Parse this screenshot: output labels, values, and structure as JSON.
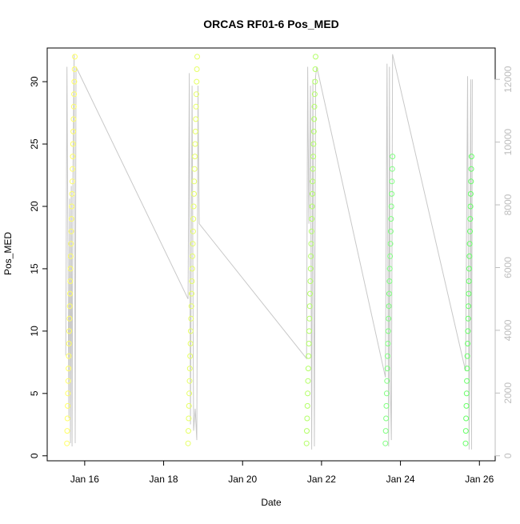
{
  "chart_data": {
    "type": "scatter",
    "title": "ORCAS RF01-6 Pos_MED",
    "xlabel": "Date",
    "ylabel": "Pos_MED",
    "x_ticks": [
      {
        "label": "Jan 16",
        "value": 16
      },
      {
        "label": "Jan 18",
        "value": 18
      },
      {
        "label": "Jan 20",
        "value": 20
      },
      {
        "label": "Jan 22",
        "value": 22
      },
      {
        "label": "Jan 24",
        "value": 24
      },
      {
        "label": "Jan 26",
        "value": 26
      }
    ],
    "xlim": [
      15.05,
      26.4
    ],
    "ylim": [
      -0.4,
      32.7
    ],
    "y_ticks": [
      0,
      5,
      10,
      15,
      20,
      25,
      30
    ],
    "y2lim": [
      -160,
      13000
    ],
    "y2_ticks": [
      0,
      2000,
      4000,
      6000,
      8000,
      10000,
      12000
    ],
    "grid": false,
    "colors": {
      "background": "#ffffff",
      "axis": "#000000",
      "secondary_axis": "#bdbdbd",
      "altitude_line": "#c8c8c8",
      "flight_colors": [
        "#ffff66",
        "#e6ff66",
        "#b3ff66",
        "#99ff66",
        "#80ff80",
        "#66ff66"
      ]
    },
    "series": [
      {
        "time_start": 15.55,
        "time_end": 15.75,
        "positions": [
          1,
          2,
          3,
          4,
          5,
          6,
          7,
          8,
          9,
          10,
          11,
          12,
          13,
          14,
          15,
          16,
          17,
          18,
          19,
          20,
          21,
          22,
          23,
          24,
          25,
          26,
          27,
          28,
          29,
          30,
          31,
          32
        ],
        "color": "#ffff66"
      },
      {
        "time_start": 18.62,
        "time_end": 18.85,
        "positions": [
          1,
          2,
          3,
          4,
          5,
          6,
          7,
          8,
          9,
          10,
          11,
          12,
          13,
          14,
          15,
          16,
          17,
          18,
          19,
          20,
          21,
          22,
          23,
          24,
          25,
          26,
          27,
          28,
          29,
          30,
          31,
          32
        ],
        "color": "#e6ff66"
      },
      {
        "time_start": 21.62,
        "time_end": 21.85,
        "positions": [
          1,
          2,
          3,
          4,
          5,
          6,
          7,
          8,
          9,
          10,
          11,
          12,
          13,
          14,
          15,
          16,
          17,
          18,
          19,
          20,
          21,
          22,
          23,
          24,
          25,
          26,
          27,
          28,
          29,
          30,
          31,
          32
        ],
        "color": "#b3ff66"
      },
      {
        "time_start": 23.62,
        "time_end": 23.8,
        "positions": [
          1,
          2,
          3,
          4,
          5,
          6,
          7,
          8,
          9,
          10,
          11,
          12,
          13,
          14,
          15,
          16,
          17,
          18,
          19,
          20,
          21,
          22,
          23,
          24
        ],
        "color": "#80ff80"
      },
      {
        "time_start": 25.65,
        "time_end": 25.8,
        "positions": [
          1,
          2,
          3,
          4,
          5,
          6,
          7,
          8,
          9,
          10,
          11,
          12,
          13,
          14,
          15,
          16,
          17,
          18,
          19,
          20,
          21,
          22,
          23,
          24
        ],
        "color": "#66ff66"
      }
    ],
    "altitude": [
      {
        "x": 15.52,
        "y": 3200
      },
      {
        "x": 15.55,
        "y": 12400
      },
      {
        "x": 15.6,
        "y": 1200
      },
      {
        "x": 15.62,
        "y": 8200
      },
      {
        "x": 15.64,
        "y": 400
      },
      {
        "x": 15.66,
        "y": 8600
      },
      {
        "x": 15.68,
        "y": 300
      },
      {
        "x": 15.7,
        "y": 8800
      },
      {
        "x": 15.73,
        "y": 12800
      },
      {
        "x": 15.76,
        "y": 400
      },
      {
        "x": 15.78,
        "y": 12400
      },
      {
        "x": 18.62,
        "y": 5000
      },
      {
        "x": 18.65,
        "y": 12200
      },
      {
        "x": 18.68,
        "y": 1000
      },
      {
        "x": 18.72,
        "y": 11800
      },
      {
        "x": 18.76,
        "y": 800
      },
      {
        "x": 18.8,
        "y": 1500
      },
      {
        "x": 18.84,
        "y": 500
      },
      {
        "x": 18.87,
        "y": 11800
      },
      {
        "x": 18.9,
        "y": 7400
      },
      {
        "x": 21.62,
        "y": 3100
      },
      {
        "x": 21.65,
        "y": 12400
      },
      {
        "x": 21.68,
        "y": 7400
      },
      {
        "x": 21.72,
        "y": 11800
      },
      {
        "x": 21.75,
        "y": 200
      },
      {
        "x": 21.78,
        "y": 12000
      },
      {
        "x": 21.82,
        "y": 300
      },
      {
        "x": 21.85,
        "y": 12100
      },
      {
        "x": 21.88,
        "y": 12400
      },
      {
        "x": 23.62,
        "y": 2500
      },
      {
        "x": 23.66,
        "y": 12500
      },
      {
        "x": 23.7,
        "y": 300
      },
      {
        "x": 23.72,
        "y": 12400
      },
      {
        "x": 23.74,
        "y": 2400
      },
      {
        "x": 23.77,
        "y": 500
      },
      {
        "x": 23.8,
        "y": 12800
      },
      {
        "x": 25.65,
        "y": 2700
      },
      {
        "x": 25.7,
        "y": 12100
      },
      {
        "x": 25.74,
        "y": 200
      },
      {
        "x": 25.78,
        "y": 12000
      },
      {
        "x": 25.8,
        "y": 200
      },
      {
        "x": 25.82,
        "y": 12000
      }
    ]
  }
}
